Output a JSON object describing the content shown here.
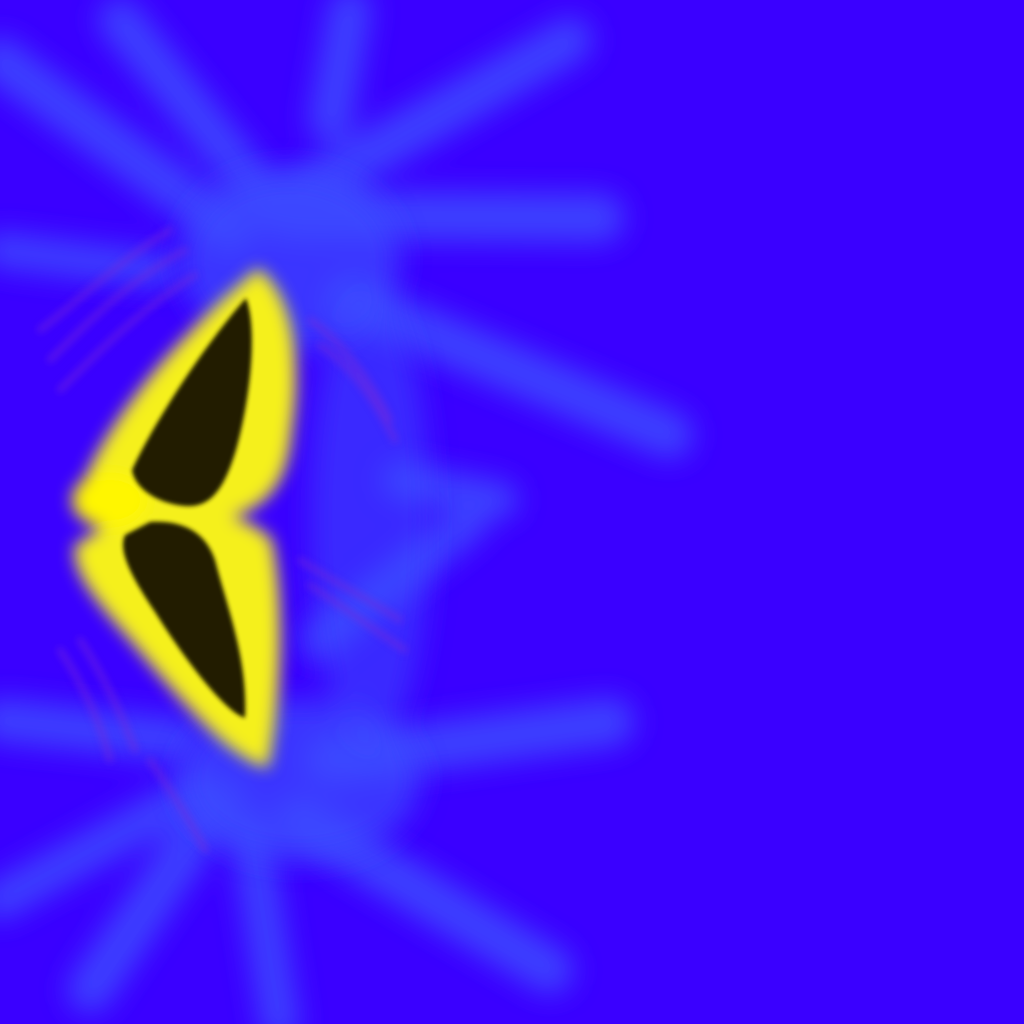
{
  "artwork": {
    "subject": "abstract-burst-with-dark-bowtie-shape",
    "colors": {
      "background": "#3a00ff",
      "rays": "#3d4bff",
      "ray_glow": "#4a6bff",
      "violet_haze": "#7a2bd6",
      "halo": "#f5f01a",
      "halo_outer": "#fff600",
      "core": "#241c05"
    }
  }
}
